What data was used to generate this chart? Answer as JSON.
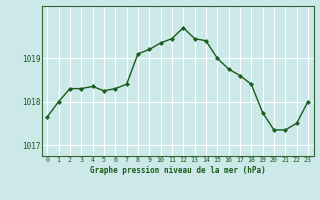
{
  "hours": [
    0,
    1,
    2,
    3,
    4,
    5,
    6,
    7,
    8,
    9,
    10,
    11,
    12,
    13,
    14,
    15,
    16,
    17,
    18,
    19,
    20,
    21,
    22,
    23
  ],
  "pressure": [
    1017.65,
    1018.0,
    1018.3,
    1018.3,
    1018.35,
    1018.25,
    1018.3,
    1018.4,
    1019.1,
    1019.2,
    1019.35,
    1019.45,
    1019.7,
    1019.45,
    1019.4,
    1019.0,
    1018.75,
    1018.6,
    1018.4,
    1017.75,
    1017.35,
    1017.35,
    1017.5,
    1018.0
  ],
  "line_color": "#1a5c1a",
  "marker_color": "#1a5c1a",
  "bg_color": "#cce8e8",
  "grid_color": "#ffffff",
  "title": "Graphe pression niveau de la mer (hPa)",
  "title_color": "#1a5c1a",
  "ylim": [
    1016.75,
    1020.2
  ],
  "yticks": [
    1017,
    1018,
    1019
  ],
  "xlim": [
    -0.5,
    23.5
  ],
  "xticks": [
    0,
    1,
    2,
    3,
    4,
    5,
    6,
    7,
    8,
    9,
    10,
    11,
    12,
    13,
    14,
    15,
    16,
    17,
    18,
    19,
    20,
    21,
    22,
    23
  ],
  "spine_color": "#336633"
}
